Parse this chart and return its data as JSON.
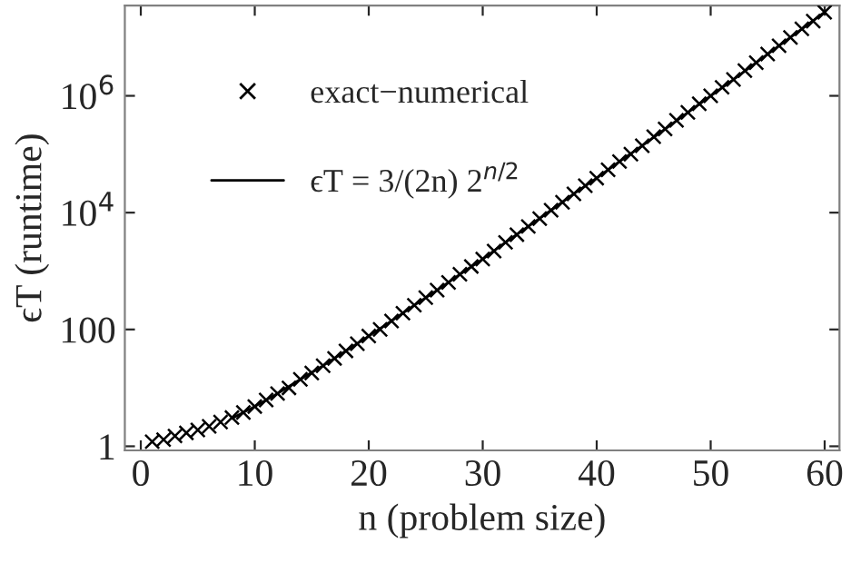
{
  "chart_data": {
    "type": "line",
    "xlabel": "n (problem size)",
    "ylabel": "ϵT (runtime)",
    "log": "y",
    "xlim": [
      -1.4,
      61.3
    ],
    "ylim": [
      0.85,
      35000000
    ],
    "xticks": [
      0,
      10,
      20,
      30,
      40,
      50,
      60
    ],
    "yticks": [
      1,
      100,
      {
        "value": 10000,
        "label": "10$^{4}$"
      },
      {
        "value": 1000000,
        "label": "10$^{6}$"
      }
    ],
    "legend": "top left",
    "grid": false,
    "series": [
      {
        "name": "exact−numerical",
        "type": "scatter",
        "marker": "cross",
        "color": "#000000",
        "x": [
          1,
          2,
          3,
          4,
          5,
          6,
          7,
          8,
          9,
          10,
          11,
          12,
          13,
          14,
          15,
          16,
          17,
          18,
          19,
          20,
          21,
          22,
          23,
          24,
          25,
          26,
          27,
          28,
          29,
          30,
          31,
          32,
          33,
          34,
          35,
          36,
          37,
          38,
          39,
          40,
          41,
          42,
          43,
          44,
          45,
          46,
          47,
          48,
          49,
          50,
          51,
          52,
          53,
          54,
          55,
          56,
          57,
          58,
          59,
          60
        ],
        "values": [
          1.2,
          1.3,
          1.5,
          1.7,
          1.9,
          2.2,
          2.6,
          3.1,
          3.8,
          4.8,
          6.2,
          8.0,
          10,
          14,
          18,
          24,
          32,
          43,
          57,
          77,
          100,
          140,
          190,
          260,
          350,
          470,
          640,
          880,
          1200,
          1600,
          2200,
          3100,
          4200,
          5800,
          7900,
          11000,
          15000,
          21000,
          29000,
          39000,
          54000,
          75000,
          100000,
          140000,
          200000,
          270000,
          380000,
          520000,
          730000,
          1000000,
          1400000,
          1900000,
          2700000,
          3700000,
          5200000,
          7200000,
          10000000,
          14000000,
          19000000,
          27000000
        ]
      },
      {
        "name": "ϵT = 3/(2n) 2$^{n/2}$",
        "marker": "none",
        "line_style": "solid",
        "color": "#000000",
        "x": [
          8,
          10,
          12,
          14,
          16,
          18,
          20,
          22,
          24,
          26,
          28,
          30,
          32,
          34,
          36,
          38,
          40,
          42,
          44,
          46,
          48,
          50,
          52,
          54,
          56,
          58,
          60
        ],
        "values": [
          3.0,
          4.8,
          8.0,
          14,
          24,
          43,
          77,
          140,
          260,
          470,
          880,
          1600,
          3100,
          5800,
          11000,
          21000,
          39000,
          75000,
          140000,
          270000,
          520000,
          1000000,
          1900000,
          3700000,
          7200000,
          14000000,
          27000000
        ]
      }
    ]
  }
}
